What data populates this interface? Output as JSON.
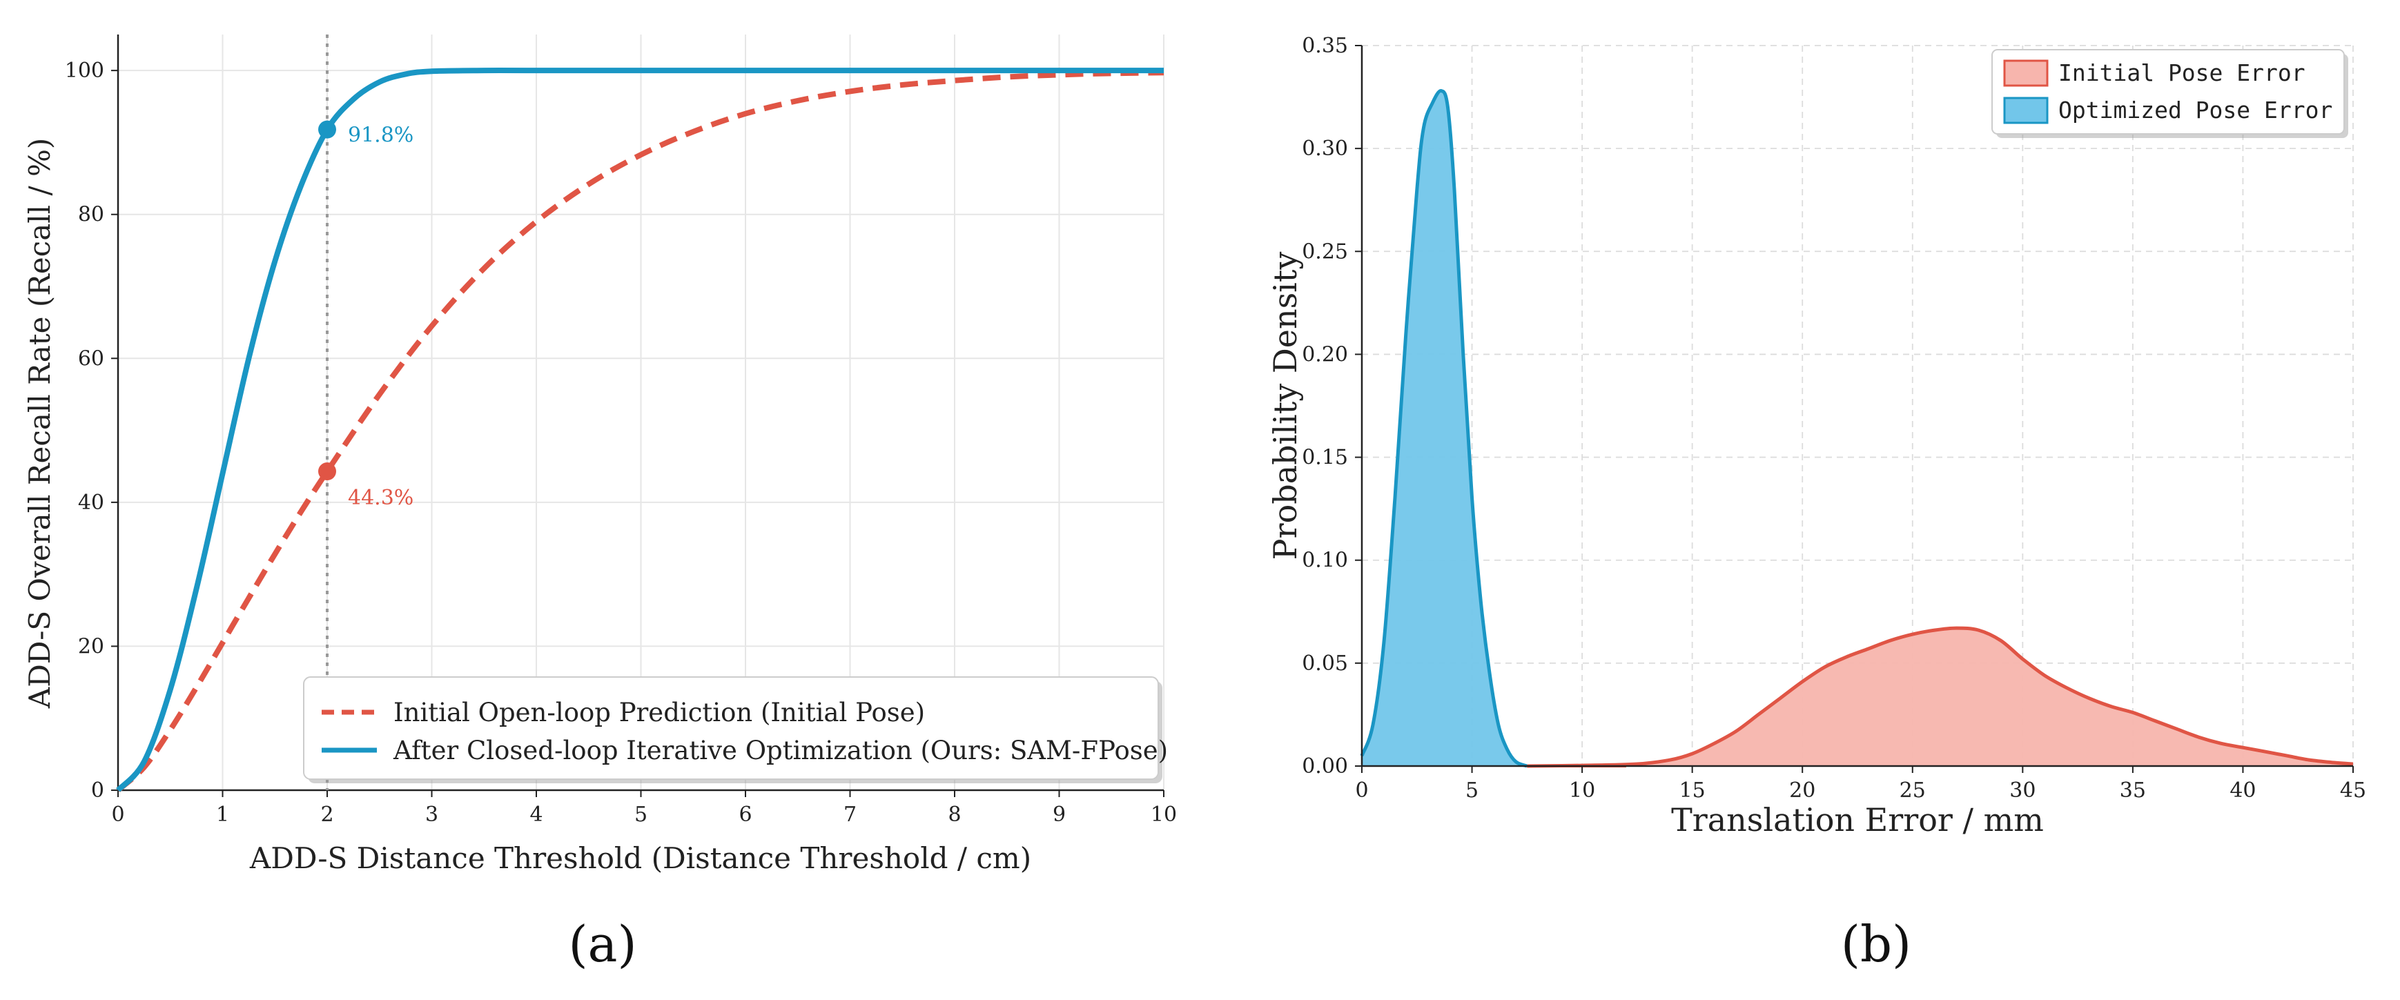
{
  "panels": {
    "a": {
      "label": "(a)"
    },
    "b": {
      "label": "(b)"
    }
  },
  "chart_data": [
    {
      "id": "a",
      "type": "line",
      "title": "",
      "xlabel": "ADD-S Distance Threshold (Distance Threshold / cm)",
      "ylabel": "ADD-S Overall Recall Rate (Recall / %)",
      "xlim": [
        0,
        10
      ],
      "ylim": [
        0,
        105
      ],
      "xticks": [
        0,
        1,
        2,
        3,
        4,
        5,
        6,
        7,
        8,
        9,
        10
      ],
      "yticks": [
        0,
        20,
        40,
        60,
        80,
        100
      ],
      "grid": true,
      "legend_position": "lower-right",
      "series": [
        {
          "name": "Initial Open-loop Prediction (Initial Pose)",
          "color": "#e05545",
          "style": "dashed",
          "x": [
            0,
            0.25,
            0.5,
            0.75,
            1,
            1.25,
            1.5,
            1.75,
            2,
            2.5,
            3,
            3.5,
            4,
            4.5,
            5,
            5.5,
            6,
            6.5,
            7,
            7.5,
            8,
            8.5,
            9,
            9.5,
            10
          ],
          "y": [
            0,
            3.2,
            8.4,
            14.3,
            20.5,
            26.7,
            32.8,
            38.7,
            44.3,
            55,
            64.5,
            72.5,
            79,
            84.2,
            88.3,
            91.5,
            94,
            95.8,
            97.1,
            98,
            98.6,
            99.1,
            99.4,
            99.6,
            99.7
          ]
        },
        {
          "name": "After Closed-loop Iterative Optimization (Ours: SAM-FPose)",
          "color": "#1a96c4",
          "style": "solid",
          "x": [
            0,
            0.25,
            0.5,
            0.75,
            1,
            1.25,
            1.5,
            1.75,
            2,
            2.25,
            2.5,
            2.75,
            3,
            3.5,
            4,
            5,
            6,
            7,
            8,
            9,
            10
          ],
          "y": [
            0,
            4,
            14,
            28,
            44,
            60,
            73.5,
            84,
            91.8,
            96,
            98.4,
            99.5,
            99.9,
            100,
            100,
            100,
            100,
            100,
            100,
            100,
            100
          ]
        }
      ],
      "reference_line": {
        "x": 2,
        "style": "dotted",
        "color": "#999999"
      },
      "markers": [
        {
          "x": 2,
          "y": 91.8,
          "label": "91.8%",
          "color": "#1a96c4"
        },
        {
          "x": 2,
          "y": 44.3,
          "label": "44.3%",
          "color": "#e05545"
        }
      ]
    },
    {
      "id": "b",
      "type": "area",
      "title": "",
      "xlabel": "Translation Error / mm",
      "ylabel": "Probability Density",
      "xlim": [
        0,
        45
      ],
      "ylim": [
        0,
        0.35
      ],
      "xticks": [
        0,
        5,
        10,
        15,
        20,
        25,
        30,
        35,
        40,
        45
      ],
      "yticks": [
        "0.00",
        "0.05",
        "0.10",
        "0.15",
        "0.20",
        "0.25",
        "0.30",
        "0.35"
      ],
      "grid": true,
      "legend_position": "top-right",
      "series": [
        {
          "name": "Initial Pose Error",
          "stroke": "#e05545",
          "fill": "#f7b5ad",
          "x": [
            7.5,
            10,
            12.5,
            14,
            15,
            16,
            17,
            18,
            19,
            20,
            21,
            22,
            23,
            24,
            25,
            26,
            27,
            28,
            29,
            30,
            31,
            32,
            33,
            34,
            35,
            36,
            37,
            38,
            39,
            40,
            41,
            42,
            43,
            44,
            45
          ],
          "y": [
            0,
            0.0003,
            0.001,
            0.003,
            0.006,
            0.011,
            0.017,
            0.025,
            0.033,
            0.041,
            0.048,
            0.053,
            0.057,
            0.061,
            0.064,
            0.066,
            0.067,
            0.066,
            0.061,
            0.052,
            0.044,
            0.038,
            0.033,
            0.029,
            0.026,
            0.022,
            0.018,
            0.014,
            0.011,
            0.009,
            0.007,
            0.005,
            0.003,
            0.0018,
            0.001
          ]
        },
        {
          "name": "Optimized Pose Error",
          "stroke": "#1a96c4",
          "fill": "#72c6ea",
          "x": [
            0,
            0.5,
            1,
            1.5,
            2,
            2.5,
            2.8,
            3.2,
            3.6,
            3.9,
            4.2,
            4.6,
            5,
            5.4,
            5.8,
            6.2,
            6.6,
            7,
            7.5
          ],
          "y": [
            0.005,
            0.02,
            0.06,
            0.13,
            0.21,
            0.28,
            0.31,
            0.322,
            0.328,
            0.32,
            0.28,
            0.2,
            0.13,
            0.08,
            0.045,
            0.02,
            0.008,
            0.002,
            0
          ]
        }
      ]
    }
  ]
}
